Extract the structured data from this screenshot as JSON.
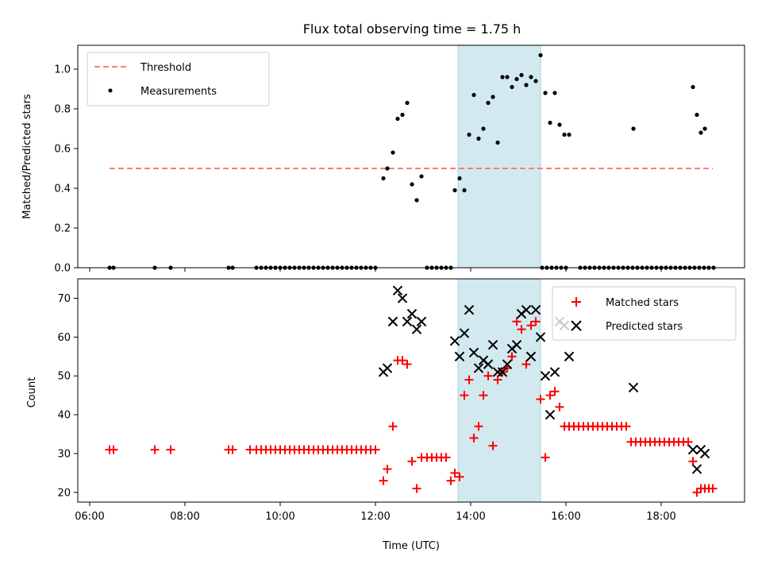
{
  "chart_data": [
    {
      "type": "scatter",
      "title": "Flux total observing time = 1.75 h",
      "xlabel": "",
      "ylabel": "Matched/Predicted stars",
      "ylim": [
        0,
        1.12
      ],
      "yticks": [
        "0.0",
        "0.2",
        "0.4",
        "0.6",
        "0.8",
        "1.0"
      ],
      "grid": false,
      "legend_position": "top-left",
      "shaded_interval": [
        "13:44",
        "15:28"
      ],
      "shade_color": "#d2e9f0",
      "threshold": {
        "name": "Threshold",
        "value": 0.5,
        "x_start": "06:25",
        "x_end": "19:05",
        "color": "#ff7b7b",
        "style": "dashed"
      },
      "series": [
        {
          "name": "Measurements",
          "color": "#000000",
          "marker": "dot",
          "points": [
            [
              "06:25",
              0.0
            ],
            [
              "06:30",
              0.0
            ],
            [
              "07:22",
              0.0
            ],
            [
              "07:42",
              0.0
            ],
            [
              "08:55",
              0.0
            ],
            [
              "09:00",
              0.0
            ],
            [
              "09:30",
              0.0
            ],
            [
              "09:36",
              0.0
            ],
            [
              "09:42",
              0.0
            ],
            [
              "09:48",
              0.0
            ],
            [
              "09:54",
              0.0
            ],
            [
              "10:00",
              0.0
            ],
            [
              "10:06",
              0.0
            ],
            [
              "10:12",
              0.0
            ],
            [
              "10:18",
              0.0
            ],
            [
              "10:24",
              0.0
            ],
            [
              "10:30",
              0.0
            ],
            [
              "10:36",
              0.0
            ],
            [
              "10:42",
              0.0
            ],
            [
              "10:48",
              0.0
            ],
            [
              "10:54",
              0.0
            ],
            [
              "11:00",
              0.0
            ],
            [
              "11:06",
              0.0
            ],
            [
              "11:12",
              0.0
            ],
            [
              "11:18",
              0.0
            ],
            [
              "11:24",
              0.0
            ],
            [
              "11:30",
              0.0
            ],
            [
              "11:36",
              0.0
            ],
            [
              "11:42",
              0.0
            ],
            [
              "11:48",
              0.0
            ],
            [
              "11:54",
              0.0
            ],
            [
              "12:00",
              0.0
            ],
            [
              "12:10",
              0.45
            ],
            [
              "12:15",
              0.5
            ],
            [
              "12:22",
              0.58
            ],
            [
              "12:28",
              0.75
            ],
            [
              "12:34",
              0.77
            ],
            [
              "12:40",
              0.83
            ],
            [
              "12:46",
              0.42
            ],
            [
              "12:52",
              0.34
            ],
            [
              "12:58",
              0.46
            ],
            [
              "13:05",
              0.0
            ],
            [
              "13:11",
              0.0
            ],
            [
              "13:17",
              0.0
            ],
            [
              "13:23",
              0.0
            ],
            [
              "13:29",
              0.0
            ],
            [
              "13:35",
              0.0
            ],
            [
              "13:40",
              0.39
            ],
            [
              "13:46",
              0.45
            ],
            [
              "13:52",
              0.39
            ],
            [
              "13:58",
              0.67
            ],
            [
              "14:04",
              0.87
            ],
            [
              "14:10",
              0.65
            ],
            [
              "14:16",
              0.7
            ],
            [
              "14:22",
              0.83
            ],
            [
              "14:28",
              0.86
            ],
            [
              "14:34",
              0.63
            ],
            [
              "14:40",
              0.96
            ],
            [
              "14:46",
              0.96
            ],
            [
              "14:52",
              0.91
            ],
            [
              "14:58",
              0.95
            ],
            [
              "15:04",
              0.97
            ],
            [
              "15:10",
              0.92
            ],
            [
              "15:16",
              0.96
            ],
            [
              "15:22",
              0.94
            ],
            [
              "15:28",
              1.07
            ],
            [
              "15:34",
              0.88
            ],
            [
              "15:40",
              0.73
            ],
            [
              "15:46",
              0.88
            ],
            [
              "15:52",
              0.72
            ],
            [
              "15:58",
              0.67
            ],
            [
              "16:04",
              0.67
            ],
            [
              "15:30",
              0.0
            ],
            [
              "15:36",
              0.0
            ],
            [
              "15:42",
              0.0
            ],
            [
              "15:48",
              0.0
            ],
            [
              "15:54",
              0.0
            ],
            [
              "16:00",
              0.0
            ],
            [
              "16:18",
              0.0
            ],
            [
              "16:24",
              0.0
            ],
            [
              "16:30",
              0.0
            ],
            [
              "16:36",
              0.0
            ],
            [
              "16:42",
              0.0
            ],
            [
              "16:48",
              0.0
            ],
            [
              "16:54",
              0.0
            ],
            [
              "17:00",
              0.0
            ],
            [
              "17:06",
              0.0
            ],
            [
              "17:12",
              0.0
            ],
            [
              "17:18",
              0.0
            ],
            [
              "17:24",
              0.0
            ],
            [
              "17:30",
              0.0
            ],
            [
              "17:36",
              0.0
            ],
            [
              "17:42",
              0.0
            ],
            [
              "17:48",
              0.0
            ],
            [
              "17:54",
              0.0
            ],
            [
              "18:00",
              0.0
            ],
            [
              "18:06",
              0.0
            ],
            [
              "18:12",
              0.0
            ],
            [
              "18:18",
              0.0
            ],
            [
              "18:24",
              0.0
            ],
            [
              "18:30",
              0.0
            ],
            [
              "18:36",
              0.0
            ],
            [
              "18:42",
              0.0
            ],
            [
              "18:48",
              0.0
            ],
            [
              "18:54",
              0.0
            ],
            [
              "19:00",
              0.0
            ],
            [
              "19:06",
              0.0
            ],
            [
              "17:25",
              0.7
            ],
            [
              "18:40",
              0.91
            ],
            [
              "18:45",
              0.77
            ],
            [
              "18:50",
              0.68
            ],
            [
              "18:55",
              0.7
            ]
          ]
        }
      ]
    },
    {
      "type": "scatter",
      "title": "",
      "xlabel": "Time (UTC)",
      "ylabel": "Count",
      "ylim": [
        17.5,
        75
      ],
      "yticks": [
        "20",
        "30",
        "40",
        "50",
        "60",
        "70"
      ],
      "xticks": [
        "06:00",
        "08:00",
        "10:00",
        "12:00",
        "14:00",
        "16:00",
        "18:00"
      ],
      "grid": false,
      "legend_position": "top-right",
      "shaded_interval": [
        "13:44",
        "15:28"
      ],
      "shade_color": "#d2e9f0",
      "series": [
        {
          "name": "Matched stars",
          "color": "#ff0000",
          "marker": "plus",
          "points": [
            [
              "06:25",
              31
            ],
            [
              "06:30",
              31
            ],
            [
              "07:22",
              31
            ],
            [
              "07:42",
              31
            ],
            [
              "08:55",
              31
            ],
            [
              "09:00",
              31
            ],
            [
              "09:22",
              31
            ],
            [
              "09:30",
              31
            ],
            [
              "09:36",
              31
            ],
            [
              "09:42",
              31
            ],
            [
              "09:48",
              31
            ],
            [
              "09:54",
              31
            ],
            [
              "10:00",
              31
            ],
            [
              "10:06",
              31
            ],
            [
              "10:12",
              31
            ],
            [
              "10:18",
              31
            ],
            [
              "10:24",
              31
            ],
            [
              "10:30",
              31
            ],
            [
              "10:36",
              31
            ],
            [
              "10:42",
              31
            ],
            [
              "10:48",
              31
            ],
            [
              "10:54",
              31
            ],
            [
              "11:00",
              31
            ],
            [
              "11:06",
              31
            ],
            [
              "11:12",
              31
            ],
            [
              "11:18",
              31
            ],
            [
              "11:24",
              31
            ],
            [
              "11:30",
              31
            ],
            [
              "11:36",
              31
            ],
            [
              "11:42",
              31
            ],
            [
              "11:48",
              31
            ],
            [
              "11:54",
              31
            ],
            [
              "12:00",
              31
            ],
            [
              "12:10",
              23
            ],
            [
              "12:15",
              26
            ],
            [
              "12:22",
              37
            ],
            [
              "12:28",
              54
            ],
            [
              "12:34",
              54
            ],
            [
              "12:40",
              53
            ],
            [
              "12:46",
              28
            ],
            [
              "12:52",
              21
            ],
            [
              "12:58",
              29
            ],
            [
              "13:05",
              29
            ],
            [
              "13:11",
              29
            ],
            [
              "13:17",
              29
            ],
            [
              "13:23",
              29
            ],
            [
              "13:29",
              29
            ],
            [
              "13:35",
              23
            ],
            [
              "13:40",
              25
            ],
            [
              "13:46",
              24
            ],
            [
              "13:52",
              45
            ],
            [
              "13:58",
              49
            ],
            [
              "14:04",
              34
            ],
            [
              "14:10",
              37
            ],
            [
              "14:16",
              45
            ],
            [
              "14:22",
              50
            ],
            [
              "14:28",
              32
            ],
            [
              "14:34",
              49
            ],
            [
              "14:40",
              51
            ],
            [
              "14:46",
              52
            ],
            [
              "14:52",
              55
            ],
            [
              "14:58",
              64
            ],
            [
              "15:04",
              62
            ],
            [
              "15:10",
              53
            ],
            [
              "15:16",
              63
            ],
            [
              "15:22",
              64
            ],
            [
              "15:28",
              44
            ],
            [
              "15:34",
              29
            ],
            [
              "15:40",
              45
            ],
            [
              "15:46",
              46
            ],
            [
              "15:52",
              42
            ],
            [
              "15:58",
              37
            ],
            [
              "16:04",
              37
            ],
            [
              "16:10",
              37
            ],
            [
              "16:16",
              37
            ],
            [
              "16:22",
              37
            ],
            [
              "16:28",
              37
            ],
            [
              "16:34",
              37
            ],
            [
              "16:40",
              37
            ],
            [
              "16:46",
              37
            ],
            [
              "16:52",
              37
            ],
            [
              "16:58",
              37
            ],
            [
              "17:04",
              37
            ],
            [
              "17:10",
              37
            ],
            [
              "17:16",
              37
            ],
            [
              "17:22",
              33
            ],
            [
              "17:28",
              33
            ],
            [
              "17:34",
              33
            ],
            [
              "17:40",
              33
            ],
            [
              "17:46",
              33
            ],
            [
              "17:52",
              33
            ],
            [
              "17:58",
              33
            ],
            [
              "18:04",
              33
            ],
            [
              "18:10",
              33
            ],
            [
              "18:16",
              33
            ],
            [
              "18:22",
              33
            ],
            [
              "18:28",
              33
            ],
            [
              "18:34",
              33
            ],
            [
              "18:40",
              28
            ],
            [
              "18:45",
              20
            ],
            [
              "18:50",
              21
            ],
            [
              "18:55",
              21
            ],
            [
              "19:00",
              21
            ],
            [
              "19:05",
              21
            ]
          ]
        },
        {
          "name": "Predicted stars",
          "color": "#000000",
          "marker": "x",
          "points": [
            [
              "12:10",
              51
            ],
            [
              "12:15",
              52
            ],
            [
              "12:22",
              64
            ],
            [
              "12:28",
              72
            ],
            [
              "12:34",
              70
            ],
            [
              "12:40",
              64
            ],
            [
              "12:46",
              66
            ],
            [
              "12:52",
              62
            ],
            [
              "12:58",
              64
            ],
            [
              "13:40",
              59
            ],
            [
              "13:46",
              55
            ],
            [
              "13:52",
              61
            ],
            [
              "13:58",
              67
            ],
            [
              "14:04",
              56
            ],
            [
              "14:10",
              52
            ],
            [
              "14:16",
              54
            ],
            [
              "14:22",
              53
            ],
            [
              "14:28",
              58
            ],
            [
              "14:34",
              51
            ],
            [
              "14:40",
              51
            ],
            [
              "14:46",
              53
            ],
            [
              "14:52",
              57
            ],
            [
              "14:58",
              58
            ],
            [
              "15:04",
              66
            ],
            [
              "15:10",
              67
            ],
            [
              "15:16",
              55
            ],
            [
              "15:22",
              67
            ],
            [
              "15:28",
              60
            ],
            [
              "15:34",
              50
            ],
            [
              "15:40",
              40
            ],
            [
              "15:46",
              51
            ],
            [
              "15:52",
              64
            ],
            [
              "15:58",
              63
            ],
            [
              "16:04",
              55
            ],
            [
              "17:25",
              47
            ],
            [
              "18:40",
              31
            ],
            [
              "18:45",
              26
            ],
            [
              "18:50",
              31
            ],
            [
              "18:55",
              30
            ]
          ]
        }
      ]
    }
  ]
}
